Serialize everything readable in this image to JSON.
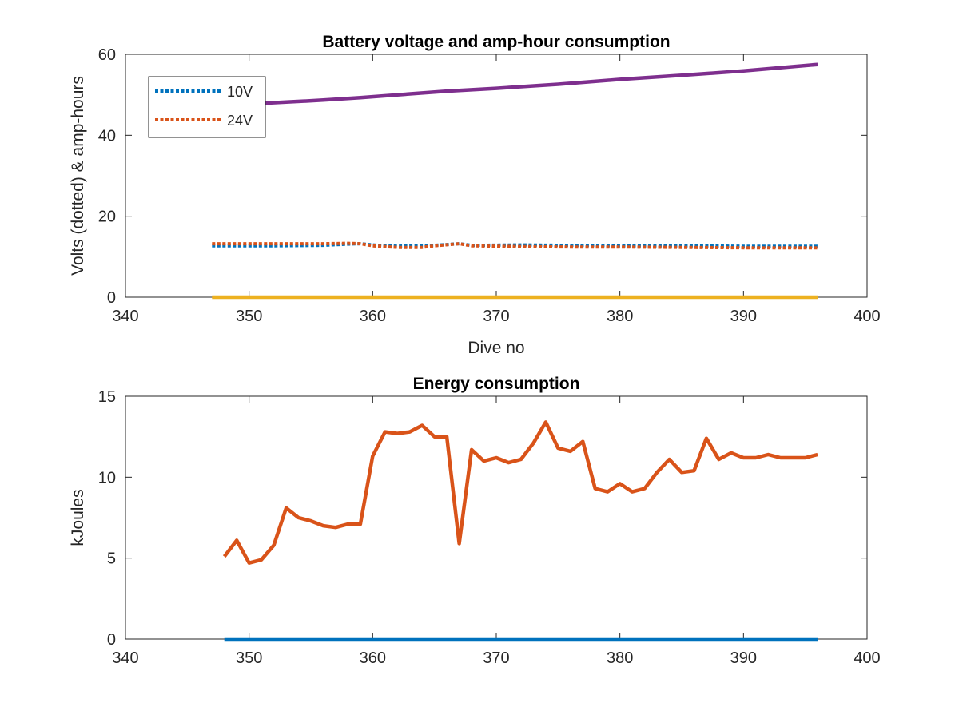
{
  "chart_data": [
    {
      "type": "line",
      "title": "Battery voltage and amp-hour consumption",
      "xlabel": "Dive no",
      "ylabel": "Volts (dotted) & amp-hours",
      "xlim": [
        340,
        400
      ],
      "ylim": [
        0,
        60
      ],
      "xticks": [
        340,
        350,
        360,
        370,
        380,
        390,
        400
      ],
      "yticks": [
        0,
        20,
        40,
        60
      ],
      "legend_placement": "top-left",
      "series": [
        {
          "name": "10V",
          "style": "dotted",
          "color": "#0072BD",
          "points": [
            [
              347,
              12.7
            ],
            [
              352,
              12.7
            ],
            [
              356,
              12.8
            ],
            [
              358,
              13.1
            ],
            [
              359,
              13.2
            ],
            [
              360,
              12.9
            ],
            [
              362,
              12.6
            ],
            [
              365,
              12.8
            ],
            [
              367,
              13.2
            ],
            [
              368,
              12.8
            ],
            [
              372,
              12.9
            ],
            [
              376,
              12.8
            ],
            [
              380,
              12.7
            ],
            [
              385,
              12.7
            ],
            [
              390,
              12.6
            ],
            [
              396,
              12.6
            ]
          ]
        },
        {
          "name": "24V",
          "style": "dotted",
          "color": "#D95319",
          "points": [
            [
              347,
              13.2
            ],
            [
              352,
              13.2
            ],
            [
              356,
              13.2
            ],
            [
              358,
              13.3
            ],
            [
              359,
              13.2
            ],
            [
              360,
              12.7
            ],
            [
              362,
              12.3
            ],
            [
              364,
              12.3
            ],
            [
              365,
              12.7
            ],
            [
              367,
              13.2
            ],
            [
              368,
              12.7
            ],
            [
              372,
              12.5
            ],
            [
              376,
              12.4
            ],
            [
              380,
              12.4
            ],
            [
              385,
              12.3
            ],
            [
              390,
              12.2
            ],
            [
              396,
              12.2
            ]
          ]
        },
        {
          "name": "",
          "style": "solid",
          "color": "#7E2F8E",
          "points": [
            [
              347,
              47.3
            ],
            [
              350,
              47.7
            ],
            [
              353,
              48.2
            ],
            [
              356,
              48.7
            ],
            [
              359,
              49.3
            ],
            [
              362,
              50.0
            ],
            [
              366,
              50.9
            ],
            [
              370,
              51.6
            ],
            [
              375,
              52.6
            ],
            [
              380,
              53.8
            ],
            [
              385,
              54.8
            ],
            [
              390,
              55.9
            ],
            [
              396,
              57.5
            ]
          ]
        },
        {
          "name": "",
          "style": "solid",
          "color": "#EDB120",
          "points": [
            [
              347,
              0
            ],
            [
              396,
              0
            ]
          ]
        }
      ]
    },
    {
      "type": "line",
      "title": "Energy consumption",
      "xlabel": "",
      "ylabel": "kJoules",
      "xlim": [
        340,
        400
      ],
      "ylim": [
        0,
        15
      ],
      "xticks": [
        340,
        350,
        360,
        370,
        380,
        390,
        400
      ],
      "yticks": [
        0,
        5,
        10,
        15
      ],
      "series": [
        {
          "name": "",
          "style": "solid",
          "color": "#D95319",
          "points": [
            [
              348,
              5.1
            ],
            [
              349,
              6.1
            ],
            [
              350,
              4.7
            ],
            [
              351,
              4.9
            ],
            [
              352,
              5.8
            ],
            [
              353,
              8.1
            ],
            [
              354,
              7.5
            ],
            [
              355,
              7.3
            ],
            [
              356,
              7.0
            ],
            [
              357,
              6.9
            ],
            [
              358,
              7.1
            ],
            [
              359,
              7.1
            ],
            [
              360,
              11.3
            ],
            [
              361,
              12.8
            ],
            [
              362,
              12.7
            ],
            [
              363,
              12.8
            ],
            [
              364,
              13.2
            ],
            [
              365,
              12.5
            ],
            [
              366,
              12.5
            ],
            [
              367,
              5.9
            ],
            [
              368,
              11.7
            ],
            [
              369,
              11.0
            ],
            [
              370,
              11.2
            ],
            [
              371,
              10.9
            ],
            [
              372,
              11.1
            ],
            [
              373,
              12.1
            ],
            [
              374,
              13.4
            ],
            [
              375,
              11.8
            ],
            [
              376,
              11.6
            ],
            [
              377,
              12.2
            ],
            [
              378,
              9.3
            ],
            [
              379,
              9.1
            ],
            [
              380,
              9.6
            ],
            [
              381,
              9.1
            ],
            [
              382,
              9.3
            ],
            [
              383,
              10.3
            ],
            [
              384,
              11.1
            ],
            [
              385,
              10.3
            ],
            [
              386,
              10.4
            ],
            [
              387,
              12.4
            ],
            [
              388,
              11.1
            ],
            [
              389,
              11.5
            ],
            [
              390,
              11.2
            ],
            [
              391,
              11.2
            ],
            [
              392,
              11.4
            ],
            [
              393,
              11.2
            ],
            [
              394,
              11.2
            ],
            [
              395,
              11.2
            ],
            [
              396,
              11.4
            ]
          ]
        },
        {
          "name": "",
          "style": "solid",
          "color": "#0072BD",
          "points": [
            [
              348,
              0
            ],
            [
              396,
              0
            ]
          ]
        }
      ]
    }
  ]
}
